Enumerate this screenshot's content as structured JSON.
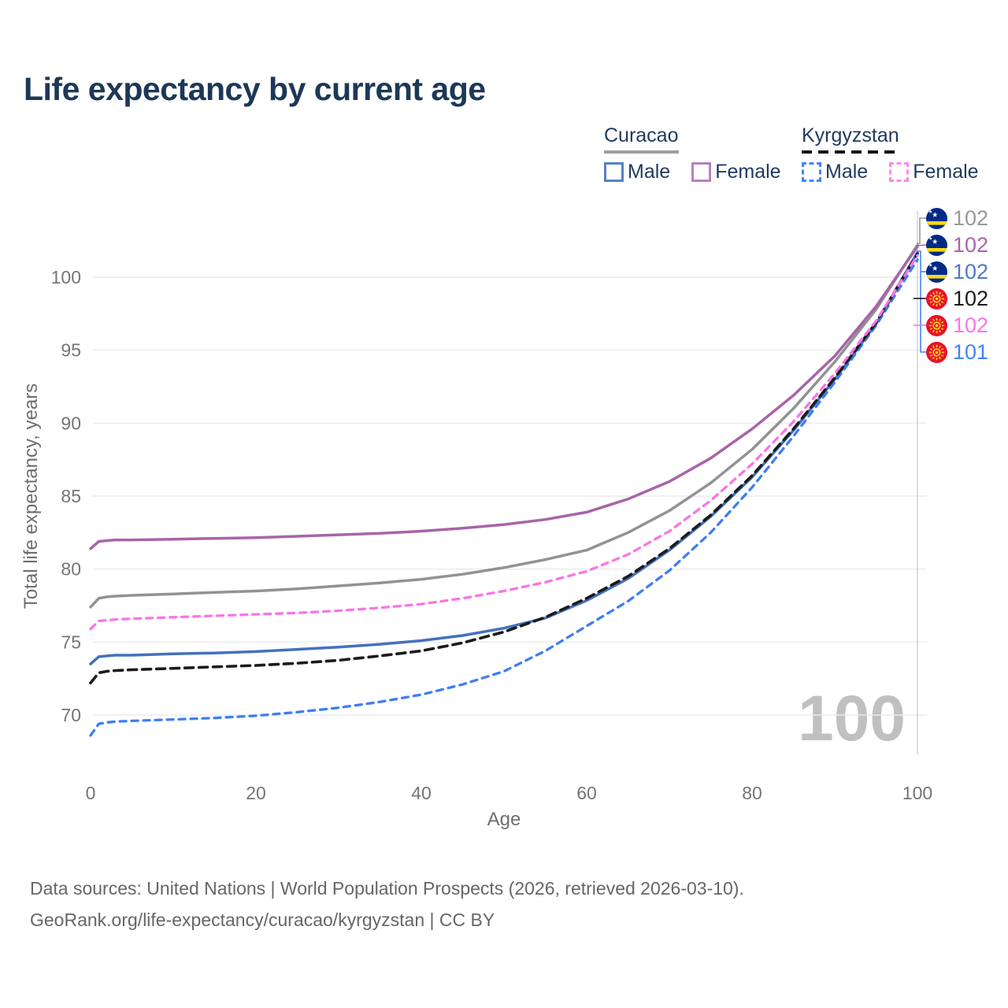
{
  "title": "Life expectancy by current age",
  "watermark": "100",
  "legend": {
    "groups": [
      {
        "name": "Curacao",
        "line_style": "solid",
        "underline_color": "#9e9e9e",
        "items": [
          {
            "label": "Male",
            "swatch_color": "#5581c4",
            "dash": false
          },
          {
            "label": "Female",
            "swatch_color": "#b97fc1",
            "dash": false
          }
        ]
      },
      {
        "name": "Kyrgyzstan",
        "line_style": "dashed",
        "underline_color": "#141414",
        "items": [
          {
            "label": "Male",
            "swatch_color": "#4285f4",
            "dash": true
          },
          {
            "label": "Female",
            "swatch_color": "#fc8ae9",
            "dash": true
          }
        ]
      }
    ]
  },
  "axes": {
    "x": {
      "label": "Age",
      "ticks": [
        0,
        20,
        40,
        60,
        80,
        100
      ],
      "range": [
        0,
        100
      ]
    },
    "y": {
      "label": "Total life expectancy, years",
      "ticks": [
        70,
        75,
        80,
        85,
        90,
        95,
        100
      ]
    }
  },
  "end_labels": [
    {
      "flag": "curacao",
      "series": "Curacao Total",
      "value": "102",
      "color": "#999999"
    },
    {
      "flag": "curacao",
      "series": "Curacao Female",
      "value": "102",
      "color": "#a864a8"
    },
    {
      "flag": "curacao",
      "series": "Curacao Male",
      "value": "102",
      "color": "#4a79c9"
    },
    {
      "flag": "kyrgyzstan",
      "series": "Kyrgyzstan Total",
      "value": "102",
      "color": "#1b1b1b"
    },
    {
      "flag": "kyrgyzstan",
      "series": "Kyrgyzstan Female",
      "value": "102",
      "color": "#fb74e6"
    },
    {
      "flag": "kyrgyzstan",
      "series": "Kyrgyzstan Male",
      "value": "101",
      "color": "#4285f4"
    }
  ],
  "footer": {
    "line1": "Data sources: United Nations | World Population Prospects (2026, retrieved 2026-03-10).",
    "line2": "GeoRank.org/life-expectancy/curacao/kyrgyzstan | CC BY"
  },
  "chart_data": {
    "type": "line",
    "title": "Life expectancy by current age",
    "xlabel": "Age",
    "ylabel": "Total life expectancy, years",
    "xlim": [
      0,
      100
    ],
    "ylim": [
      67.5,
      103.5
    ],
    "grid": true,
    "legend_position": "top-right",
    "hover_age": 100,
    "x": [
      0,
      1,
      2,
      3,
      5,
      10,
      15,
      20,
      25,
      30,
      35,
      40,
      45,
      50,
      55,
      60,
      65,
      70,
      75,
      80,
      85,
      90,
      95,
      100
    ],
    "series": [
      {
        "name": "Curacao Total",
        "country": "Curacao",
        "sex": "total",
        "color": "#929292",
        "dash": "solid",
        "width": 3.5,
        "values": [
          77.4,
          78.0,
          78.1,
          78.15,
          78.2,
          78.3,
          78.4,
          78.5,
          78.65,
          78.85,
          79.05,
          79.3,
          79.65,
          80.1,
          80.65,
          81.3,
          82.5,
          84.0,
          85.9,
          88.2,
          91.0,
          94.2,
          97.8,
          102.2
        ]
      },
      {
        "name": "Curacao Female",
        "country": "Curacao",
        "sex": "female",
        "color": "#a864a8",
        "dash": "solid",
        "width": 3.5,
        "values": [
          81.4,
          81.9,
          81.95,
          82.0,
          82.0,
          82.05,
          82.1,
          82.15,
          82.25,
          82.35,
          82.45,
          82.6,
          82.8,
          83.05,
          83.4,
          83.9,
          84.8,
          86.0,
          87.6,
          89.6,
          91.9,
          94.6,
          98.0,
          102.1
        ]
      },
      {
        "name": "Kyrgyzstan Male",
        "country": "Kyrgyzstan",
        "sex": "male",
        "color": "#3e7df7",
        "dash": "8 7",
        "width": 3.3,
        "values": [
          68.6,
          69.4,
          69.5,
          69.55,
          69.6,
          69.7,
          69.8,
          69.95,
          70.2,
          70.5,
          70.9,
          71.4,
          72.1,
          73.0,
          74.4,
          76.1,
          77.8,
          79.9,
          82.5,
          85.6,
          89.1,
          92.8,
          96.7,
          101.2
        ]
      },
      {
        "name": "Curacao Male",
        "country": "Curacao",
        "sex": "male",
        "color": "#4471bd",
        "dash": "solid",
        "width": 3.5,
        "values": [
          73.5,
          74.0,
          74.05,
          74.1,
          74.1,
          74.2,
          74.25,
          74.35,
          74.5,
          74.65,
          74.85,
          75.1,
          75.45,
          75.95,
          76.65,
          77.85,
          79.35,
          81.3,
          83.6,
          86.3,
          89.5,
          93.0,
          96.8,
          101.7
        ]
      },
      {
        "name": "Kyrgyzstan Total",
        "country": "Kyrgyzstan",
        "sex": "total",
        "color": "#1b1b1b",
        "dash": "11 7",
        "width": 3.6,
        "values": [
          72.2,
          72.9,
          73.0,
          73.05,
          73.1,
          73.2,
          73.3,
          73.4,
          73.55,
          73.75,
          74.05,
          74.4,
          74.95,
          75.7,
          76.7,
          78.0,
          79.5,
          81.4,
          83.7,
          86.4,
          89.6,
          93.1,
          96.9,
          101.6
        ]
      },
      {
        "name": "Kyrgyzstan Female",
        "country": "Kyrgyzstan",
        "sex": "female",
        "color": "#fb74e6",
        "dash": "8 7",
        "width": 3.3,
        "values": [
          75.9,
          76.45,
          76.5,
          76.55,
          76.6,
          76.7,
          76.8,
          76.9,
          77.0,
          77.15,
          77.35,
          77.6,
          78.0,
          78.5,
          79.1,
          79.85,
          81.0,
          82.6,
          84.7,
          87.2,
          90.1,
          93.4,
          97.0,
          101.5
        ]
      }
    ]
  }
}
